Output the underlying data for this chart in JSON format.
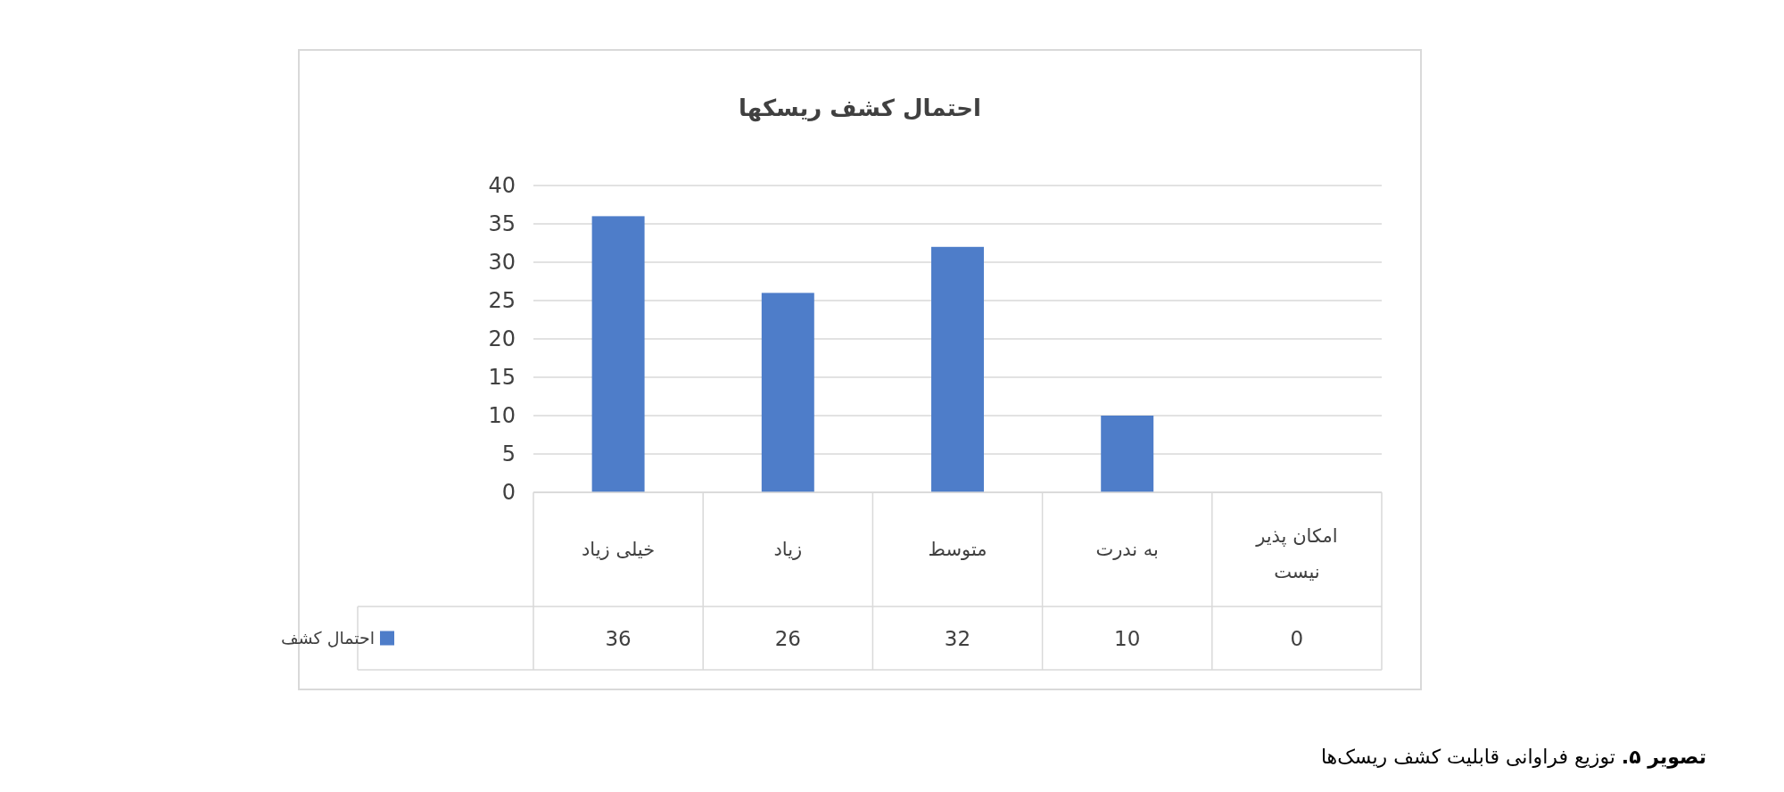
{
  "chart_data": {
    "type": "bar",
    "title": "احتمال کشف ریسکها",
    "categories": [
      "خیلی زیاد",
      "زیاد",
      "متوسط",
      "به ندرت",
      "امکان پذیر نیست"
    ],
    "series": [
      {
        "name": "احتمال کشف",
        "color": "#4e7dc9",
        "values": [
          36,
          26,
          32,
          10,
          0
        ]
      }
    ],
    "ylim": [
      0,
      40
    ],
    "yticks": [
      0,
      5,
      10,
      15,
      20,
      25,
      30,
      35,
      40
    ],
    "grid": "y",
    "legend": "bottom",
    "data_labels": true,
    "annotations": [
      "تصویر ۵. توزیع فراوانی قابلیت کشف ریسک‌ها"
    ]
  }
}
